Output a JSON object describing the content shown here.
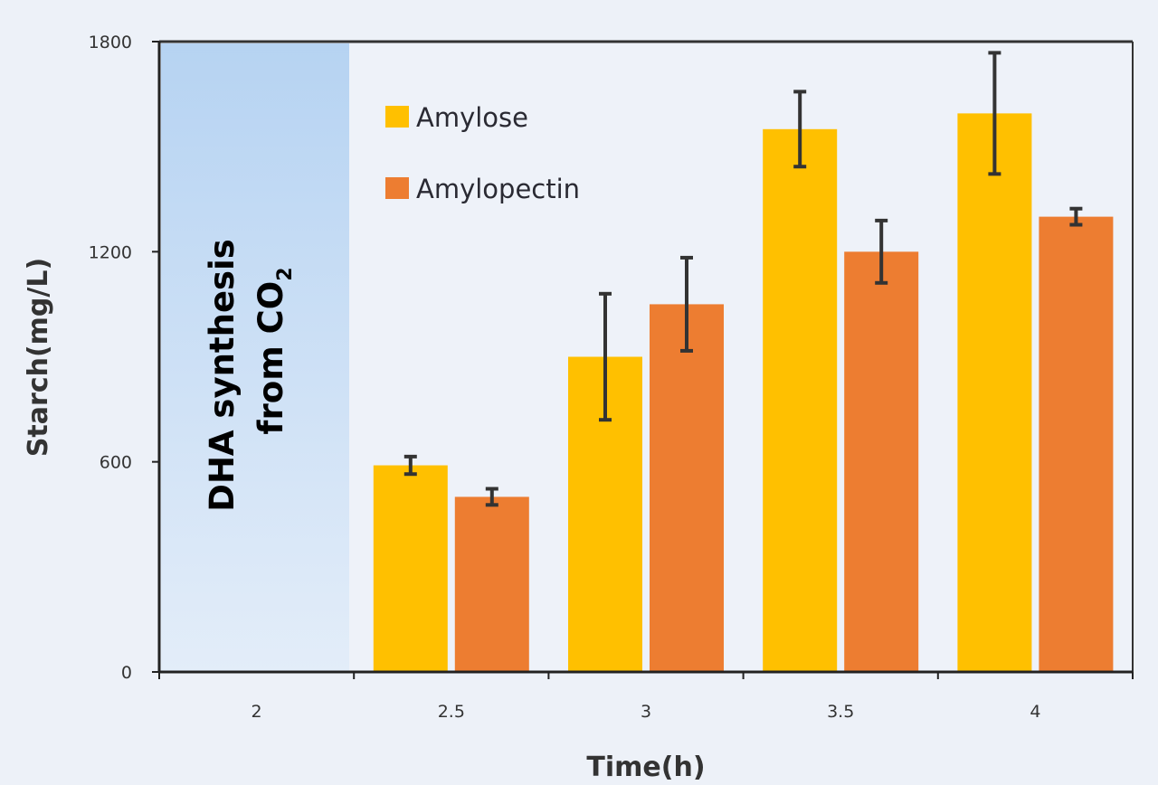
{
  "chart_data": {
    "type": "bar",
    "title": "",
    "xlabel": "Time(h)",
    "ylabel": "Starch(mg/L)",
    "categories": [
      "2",
      "2.5",
      "3",
      "3.5",
      "4"
    ],
    "ylim": [
      0,
      1800
    ],
    "yticks": [
      0,
      600,
      1200,
      1800
    ],
    "grid": false,
    "legend_position": "top-left",
    "series": [
      {
        "name": "Amylose",
        "color": "#ffc000",
        "values": [
          null,
          590,
          900,
          1550,
          1595
        ],
        "errors": [
          null,
          25,
          180,
          107,
          173
        ]
      },
      {
        "name": "Amylopectin",
        "color": "#ed7d31",
        "values": [
          null,
          500,
          1050,
          1200,
          1300
        ],
        "errors": [
          null,
          23,
          133,
          89,
          23
        ]
      }
    ],
    "annotations": [
      {
        "text_line1": "DHA synthesis",
        "text_line2": "from CO",
        "subscript": "2",
        "region_category": "2",
        "color": "#bcd7f3"
      }
    ]
  }
}
